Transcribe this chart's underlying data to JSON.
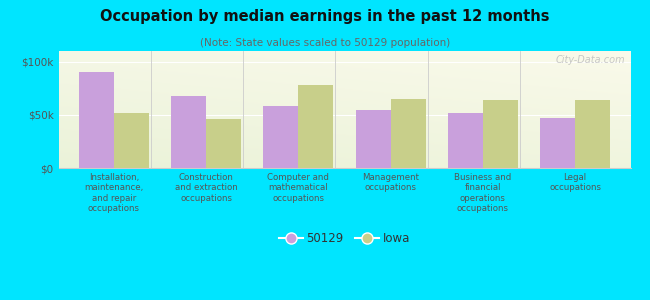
{
  "title": "Occupation by median earnings in the past 12 months",
  "subtitle": "(Note: State values scaled to 50129 population)",
  "background_color": "#00e5ff",
  "plot_bg_color": "#eef3e2",
  "categories": [
    "Installation,\nmaintenance,\nand repair\noccupations",
    "Construction\nand extraction\noccupations",
    "Computer and\nmathematical\noccupations",
    "Management\noccupations",
    "Business and\nfinancial\noperations\noccupations",
    "Legal\noccupations"
  ],
  "values_50129": [
    90000,
    68000,
    58000,
    55000,
    52000,
    47000
  ],
  "values_iowa": [
    52000,
    46000,
    78000,
    65000,
    64000,
    64000
  ],
  "color_50129": "#c9a0dc",
  "color_iowa": "#c8cf8a",
  "ylim": [
    0,
    110000
  ],
  "yticks": [
    0,
    50000,
    100000
  ],
  "ytick_labels": [
    "$0",
    "$50k",
    "$100k"
  ],
  "legend_labels": [
    "50129",
    "Iowa"
  ],
  "bar_width": 0.38,
  "watermark": "City-Data.com"
}
